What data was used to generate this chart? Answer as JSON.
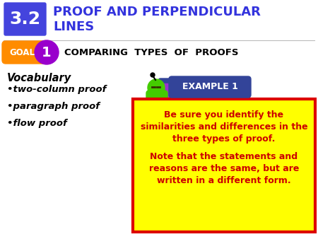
{
  "title_number": "3.2",
  "title_text_line1": "PROOF AND PERPENDICULAR",
  "title_text_line2": "LINES",
  "title_color": "#3333dd",
  "title_box_color": "#4444dd",
  "title_box_text_color": "#ffffff",
  "goal_label": "GOAL",
  "goal_number": "1",
  "goal_text": "COMPARING  TYPES  OF  PROOFS",
  "goal_box_color": "#ff8c00",
  "goal_circle_color": "#9900cc",
  "vocab_title": "Vocabulary",
  "vocab_items": [
    "two-column proof",
    "paragraph proof",
    "flow proof"
  ],
  "example_label": "EXAMPLE 1",
  "example_box_color": "#334499",
  "box_text_line1": "Be sure you identify the",
  "box_text_line2": "similarities and differences in the",
  "box_text_line3": "three types of proof.",
  "box_text_line4": "Note that the statements and",
  "box_text_line5": "reasons are the same, but are",
  "box_text_line6": "written in a different form.",
  "box_bg_color": "#ffff00",
  "box_border_color": "#dd0000",
  "box_text_color": "#cc0000",
  "bg_color": "#ffffff",
  "figure_green": "#44cc00",
  "figure_purple": "#9933cc",
  "figure_blue": "#334499"
}
